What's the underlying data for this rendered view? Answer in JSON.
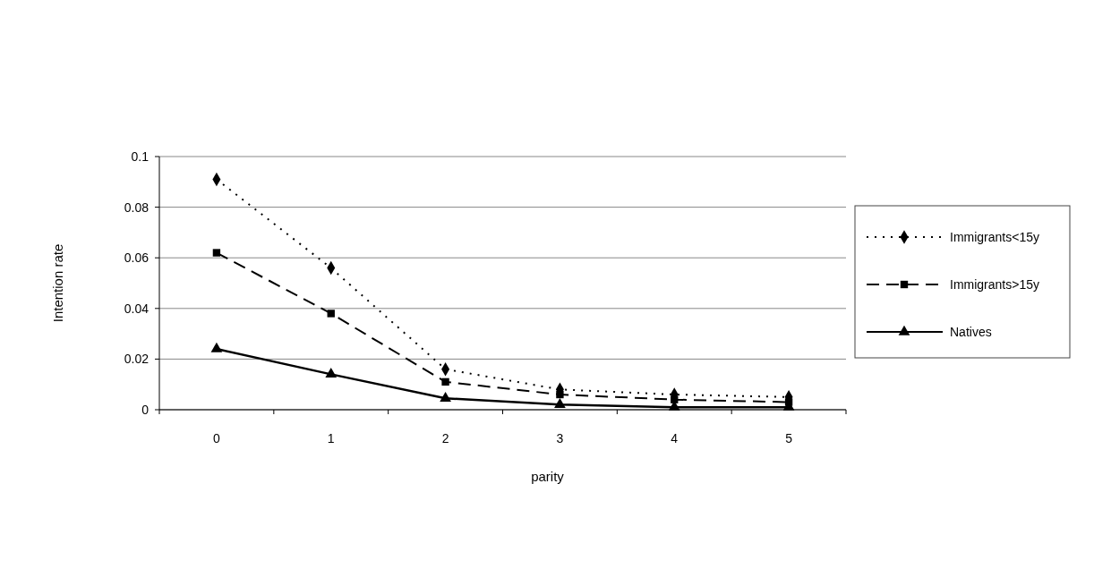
{
  "chart_data": {
    "type": "line",
    "xlabel": "parity",
    "ylabel": "Intention rate",
    "categories": [
      "0",
      "1",
      "2",
      "3",
      "4",
      "5"
    ],
    "series": [
      {
        "name": "Immigrants<15y",
        "color": "#000000",
        "marker": "diamond",
        "line_style": "dotted",
        "values": [
          0.091,
          0.056,
          0.016,
          0.008,
          0.006,
          0.005
        ]
      },
      {
        "name": "Immigrants>15y",
        "color": "#000000",
        "marker": "square",
        "line_style": "dashed",
        "values": [
          0.062,
          0.038,
          0.011,
          0.006,
          0.004,
          0.003
        ]
      },
      {
        "name": "Natives",
        "color": "#000000",
        "marker": "triangle",
        "line_style": "solid",
        "values": [
          0.024,
          0.014,
          0.0045,
          0.002,
          0.001,
          0.001
        ]
      }
    ],
    "ylim": [
      0,
      0.1
    ],
    "yticks": [
      0,
      0.02,
      0.04,
      0.06,
      0.08,
      0.1
    ],
    "grid": "y",
    "legend": "right"
  }
}
